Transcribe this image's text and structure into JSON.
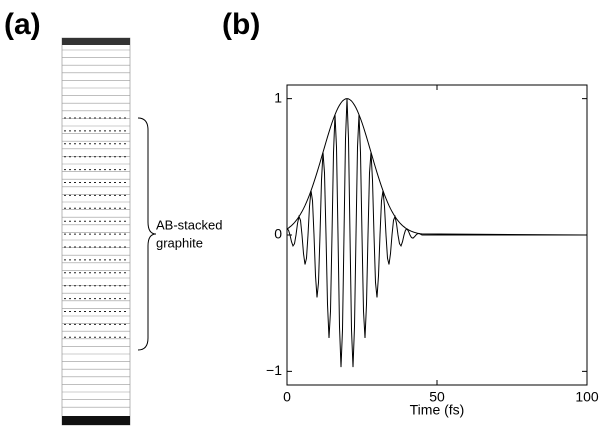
{
  "panels": [
    "(a)",
    "(b)"
  ],
  "diagram": {
    "label": [
      "AB-stacked",
      "graphite"
    ]
  },
  "chart_data": {
    "type": "line",
    "xlabel": "Time (fs)",
    "x": [
      0,
      0.5,
      1,
      1.5,
      2,
      2.5,
      3,
      3.5,
      4,
      4.5,
      5,
      5.5,
      6,
      6.5,
      7,
      7.5,
      8,
      8.5,
      9,
      9.5,
      10,
      10.5,
      11,
      11.5,
      12,
      12.5,
      13,
      13.5,
      14,
      14.5,
      15,
      15.5,
      16,
      16.5,
      17,
      17.5,
      18,
      18.5,
      19,
      19.5,
      20,
      20.5,
      21,
      21.5,
      22,
      22.5,
      23,
      23.5,
      24,
      24.5,
      25,
      25.5,
      26,
      26.5,
      27,
      27.5,
      28,
      28.5,
      29,
      29.5,
      30,
      30.5,
      31,
      31.5,
      32,
      32.5,
      33,
      33.5,
      34,
      34.5,
      35,
      35.5,
      36,
      36.5,
      37,
      37.5,
      38,
      38.5,
      39,
      39.5,
      40,
      40.5,
      41,
      41.5,
      42,
      42.5,
      43,
      43.5,
      44,
      44.5,
      45,
      100
    ],
    "series": [
      {
        "color": "#000000",
        "values": [
          0.044,
          0.051,
          0.06,
          0.069,
          0.08,
          0.091,
          0.105,
          0.119,
          0.135,
          0.153,
          0.172,
          0.193,
          0.216,
          0.241,
          0.267,
          0.295,
          0.325,
          0.356,
          0.389,
          0.423,
          0.458,
          0.494,
          0.531,
          0.569,
          0.607,
          0.644,
          0.682,
          0.719,
          0.755,
          0.79,
          0.823,
          0.854,
          0.882,
          0.909,
          0.932,
          0.952,
          0.969,
          0.983,
          0.992,
          0.998,
          1,
          0.998,
          0.992,
          0.983,
          0.969,
          0.952,
          0.932,
          0.909,
          0.882,
          0.854,
          0.823,
          0.79,
          0.755,
          0.719,
          0.682,
          0.644,
          0.607,
          0.569,
          0.531,
          0.494,
          0.458,
          0.423,
          0.389,
          0.356,
          0.325,
          0.295,
          0.267,
          0.241,
          0.216,
          0.193,
          0.172,
          0.153,
          0.135,
          0.119,
          0.105,
          0.091,
          0.08,
          0.069,
          0.06,
          0.051,
          0.044,
          0.038,
          0.032,
          0.027,
          0.023,
          0.019,
          0.016,
          0.013,
          0.011,
          0.009,
          0.008,
          0
        ]
      },
      {
        "color": "#000000",
        "values": [
          0.044,
          0.036,
          0,
          -0.049,
          -0.08,
          -0.064,
          0,
          0.084,
          0.135,
          0.108,
          0,
          -0.136,
          -0.216,
          -0.17,
          0,
          0.209,
          0.325,
          0.252,
          0,
          -0.299,
          -0.458,
          -0.349,
          0,
          0.402,
          0.607,
          0.455,
          0,
          -0.508,
          -0.755,
          -0.559,
          0,
          0.604,
          0.882,
          0.643,
          0,
          -0.673,
          -0.969,
          -0.695,
          0,
          0.706,
          1,
          0.706,
          0,
          -0.695,
          -0.969,
          -0.673,
          0,
          0.643,
          0.882,
          0.604,
          0,
          -0.559,
          -0.755,
          -0.508,
          0,
          0.455,
          0.607,
          0.402,
          0,
          -0.349,
          -0.458,
          -0.299,
          0,
          0.252,
          0.325,
          0.209,
          0,
          -0.17,
          -0.216,
          -0.136,
          0,
          0.108,
          0.135,
          0.084,
          0,
          -0.064,
          -0.08,
          -0.049,
          0,
          0.036,
          0.044,
          0.027,
          0,
          -0.019,
          -0.023,
          -0.013,
          0,
          0.009,
          0.011,
          0.006,
          0,
          0
        ]
      }
    ],
    "xlim": [
      0,
      100
    ],
    "xticks": [
      0,
      50,
      100
    ],
    "ylim": [
      -1.1,
      1.1
    ],
    "yticks": [
      {
        "value": -1,
        "label": "−1"
      },
      0,
      1
    ]
  }
}
